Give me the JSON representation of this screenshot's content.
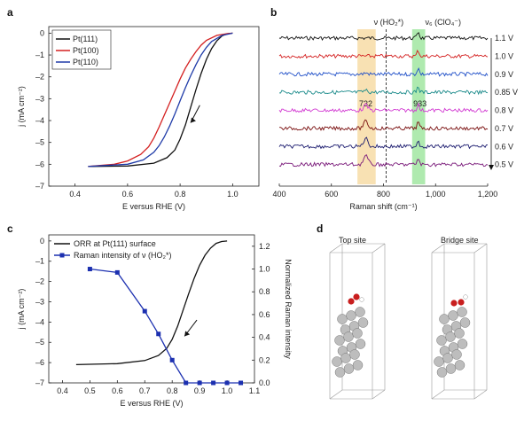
{
  "panels": {
    "a": "a",
    "b": "b",
    "c": "c",
    "d": "d"
  },
  "chart_data": [
    {
      "panel": "a",
      "type": "line",
      "xlabel": "E versus RHE (V)",
      "ylabel": "j (mA cm⁻²)",
      "xlim": [
        0.3,
        1.1
      ],
      "ylim": [
        -7,
        0.3
      ],
      "xticks": [
        0.4,
        0.6,
        0.8,
        1.0
      ],
      "xtick_labels": [
        "0.4",
        "0.6",
        "0.8",
        "1.0"
      ],
      "yticks": [
        0,
        -1,
        -2,
        -3,
        -4,
        -5,
        -6,
        -7
      ],
      "ytick_labels": [
        "0",
        "–1",
        "–2",
        "–3",
        "–4",
        "–5",
        "–6",
        "–7"
      ],
      "legend_position": "top-left",
      "annotation": "arrow",
      "series": [
        {
          "name": "Pt(111)",
          "color": "#111111",
          "x": [
            0.45,
            0.6,
            0.7,
            0.75,
            0.78,
            0.8,
            0.82,
            0.84,
            0.86,
            0.88,
            0.9,
            0.92,
            0.94,
            0.96,
            0.98,
            1.0
          ],
          "y": [
            -6.1,
            -6.08,
            -5.95,
            -5.7,
            -5.35,
            -4.85,
            -4.2,
            -3.4,
            -2.6,
            -1.85,
            -1.2,
            -0.7,
            -0.35,
            -0.12,
            -0.03,
            0
          ]
        },
        {
          "name": "Pt(100)",
          "color": "#d42020",
          "x": [
            0.45,
            0.55,
            0.6,
            0.65,
            0.68,
            0.7,
            0.72,
            0.74,
            0.76,
            0.78,
            0.8,
            0.82,
            0.84,
            0.86,
            0.88,
            0.9,
            0.94,
            0.98,
            1.0
          ],
          "y": [
            -6.1,
            -6.0,
            -5.85,
            -5.55,
            -5.2,
            -4.8,
            -4.3,
            -3.75,
            -3.2,
            -2.65,
            -2.1,
            -1.6,
            -1.2,
            -0.85,
            -0.55,
            -0.33,
            -0.1,
            -0.02,
            0
          ]
        },
        {
          "name": "Pt(110)",
          "color": "#1f3ba8",
          "x": [
            0.45,
            0.6,
            0.66,
            0.7,
            0.72,
            0.74,
            0.76,
            0.78,
            0.8,
            0.82,
            0.84,
            0.86,
            0.88,
            0.9,
            0.92,
            0.96,
            1.0
          ],
          "y": [
            -6.1,
            -6.0,
            -5.8,
            -5.45,
            -5.15,
            -4.75,
            -4.25,
            -3.7,
            -3.1,
            -2.5,
            -1.95,
            -1.45,
            -1.0,
            -0.65,
            -0.38,
            -0.1,
            0
          ]
        }
      ]
    },
    {
      "panel": "b",
      "type": "line",
      "xlabel": "Raman shift (cm⁻¹)",
      "xlim": [
        400,
        1200
      ],
      "xticks": [
        400,
        600,
        800,
        1000,
        1200
      ],
      "xtick_labels": [
        "400",
        "600",
        "800",
        "1,000",
        "1,200"
      ],
      "annotations": {
        "hoo_label": "ν (HO₂*)",
        "clo4_label": "ν₆ (ClO₄⁻)",
        "peak1": "732",
        "peak2": "933"
      },
      "highlight_bands": [
        {
          "from": 700,
          "to": 770,
          "color": "#f6d9a0"
        },
        {
          "from": 910,
          "to": 960,
          "color": "#9be59b"
        }
      ],
      "series": [
        {
          "name": "1.1 V",
          "color": "#111111",
          "peak732": 0.0,
          "peak933": 0.55
        },
        {
          "name": "1.0 V",
          "color": "#d42020",
          "peak732": 0.0,
          "peak933": 0.45
        },
        {
          "name": "0.9 V",
          "color": "#1f4fc8",
          "peak732": 0.1,
          "peak933": 0.5
        },
        {
          "name": "0.85 V",
          "color": "#1a8a8a",
          "peak732": 0.15,
          "peak933": 0.45
        },
        {
          "name": "0.8 V",
          "color": "#d23ad2",
          "peak732": 0.45,
          "peak933": 0.5
        },
        {
          "name": "0.7 V",
          "color": "#7a1010",
          "peak732": 0.6,
          "peak933": 0.5
        },
        {
          "name": "0.6 V",
          "color": "#1a1a6e",
          "peak732": 0.7,
          "peak933": 0.5
        },
        {
          "name": "0.5 V",
          "color": "#7a1a7a",
          "peak732": 0.75,
          "peak933": 0.5
        }
      ]
    },
    {
      "panel": "c",
      "type": "line",
      "xlabel": "E versus RHE (V)",
      "ylabel": "j (mA cm⁻²)",
      "ylabel_right": "Normalized Raman intensity",
      "xlim": [
        0.35,
        1.1
      ],
      "ylim": [
        -7,
        0.3
      ],
      "ylim_right": [
        0,
        1.3
      ],
      "xticks": [
        0.4,
        0.5,
        0.6,
        0.7,
        0.8,
        0.9,
        1.0,
        1.1
      ],
      "xtick_labels": [
        "0.4",
        "0.5",
        "0.6",
        "0.7",
        "0.8",
        "0.9",
        "1.0",
        "1.1"
      ],
      "yticks": [
        0,
        -1,
        -2,
        -3,
        -4,
        -5,
        -6,
        -7
      ],
      "ytick_labels": [
        "0",
        "–1",
        "–2",
        "–3",
        "–4",
        "–5",
        "–6",
        "–7"
      ],
      "yticks_right": [
        0.0,
        0.2,
        0.4,
        0.6,
        0.8,
        1.0,
        1.2
      ],
      "ytick_labels_right": [
        "0.0",
        "0.2",
        "0.4",
        "0.6",
        "0.8",
        "1.0",
        "1.2"
      ],
      "legend_position": "top-left",
      "annotation": "arrow",
      "series": [
        {
          "name": "ORR at Pt(111) surface",
          "color": "#111111",
          "axis": "left",
          "x": [
            0.45,
            0.6,
            0.7,
            0.75,
            0.78,
            0.8,
            0.82,
            0.84,
            0.86,
            0.88,
            0.9,
            0.92,
            0.94,
            0.96,
            0.98,
            1.0
          ],
          "y": [
            -6.1,
            -6.05,
            -5.9,
            -5.65,
            -5.3,
            -4.85,
            -4.2,
            -3.4,
            -2.6,
            -1.85,
            -1.2,
            -0.7,
            -0.35,
            -0.12,
            -0.03,
            0
          ]
        },
        {
          "name": "Raman intensity of ν (HO₂*)",
          "color": "#1c30b0",
          "axis": "right",
          "x": [
            0.5,
            0.6,
            0.7,
            0.75,
            0.8,
            0.85,
            0.9,
            0.95,
            1.0,
            1.05
          ],
          "y": [
            1.0,
            0.97,
            0.63,
            0.43,
            0.2,
            0.0,
            0.0,
            0.0,
            0.0,
            0.0
          ]
        }
      ]
    }
  ],
  "panel_d": {
    "top_site_label": "Top site",
    "bridge_site_label": "Bridge site"
  }
}
